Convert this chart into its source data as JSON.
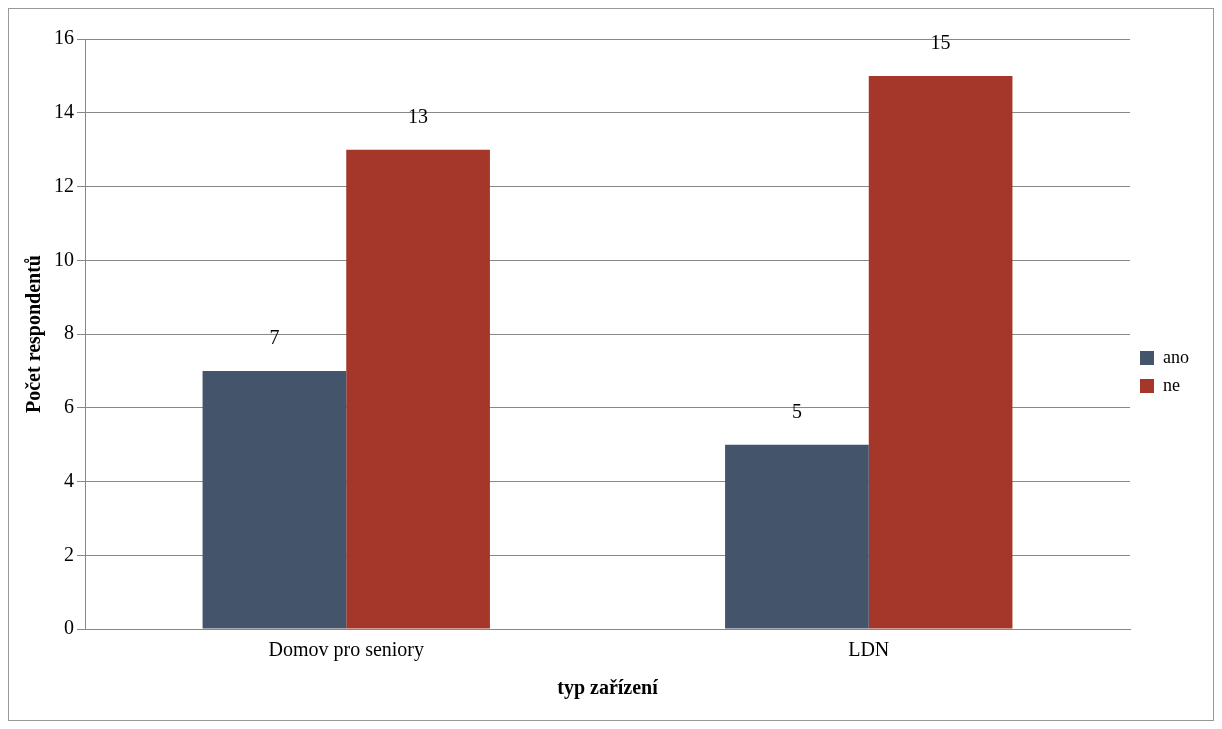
{
  "chart_data": {
    "type": "bar",
    "xlabel": "typ zařízení",
    "ylabel": "Počet respondentů",
    "categories": [
      "Domov pro seniory",
      "LDN"
    ],
    "series": [
      {
        "name": "ano",
        "color": "#44546a",
        "values": [
          7,
          5
        ]
      },
      {
        "name": "ne",
        "color": "#a5372a",
        "values": [
          13,
          15
        ]
      }
    ],
    "ylim": [
      0,
      16
    ],
    "yticks": [
      0,
      2,
      4,
      6,
      8,
      10,
      12,
      14,
      16
    ],
    "grid": "y",
    "legend": "right",
    "data_labels": true
  }
}
